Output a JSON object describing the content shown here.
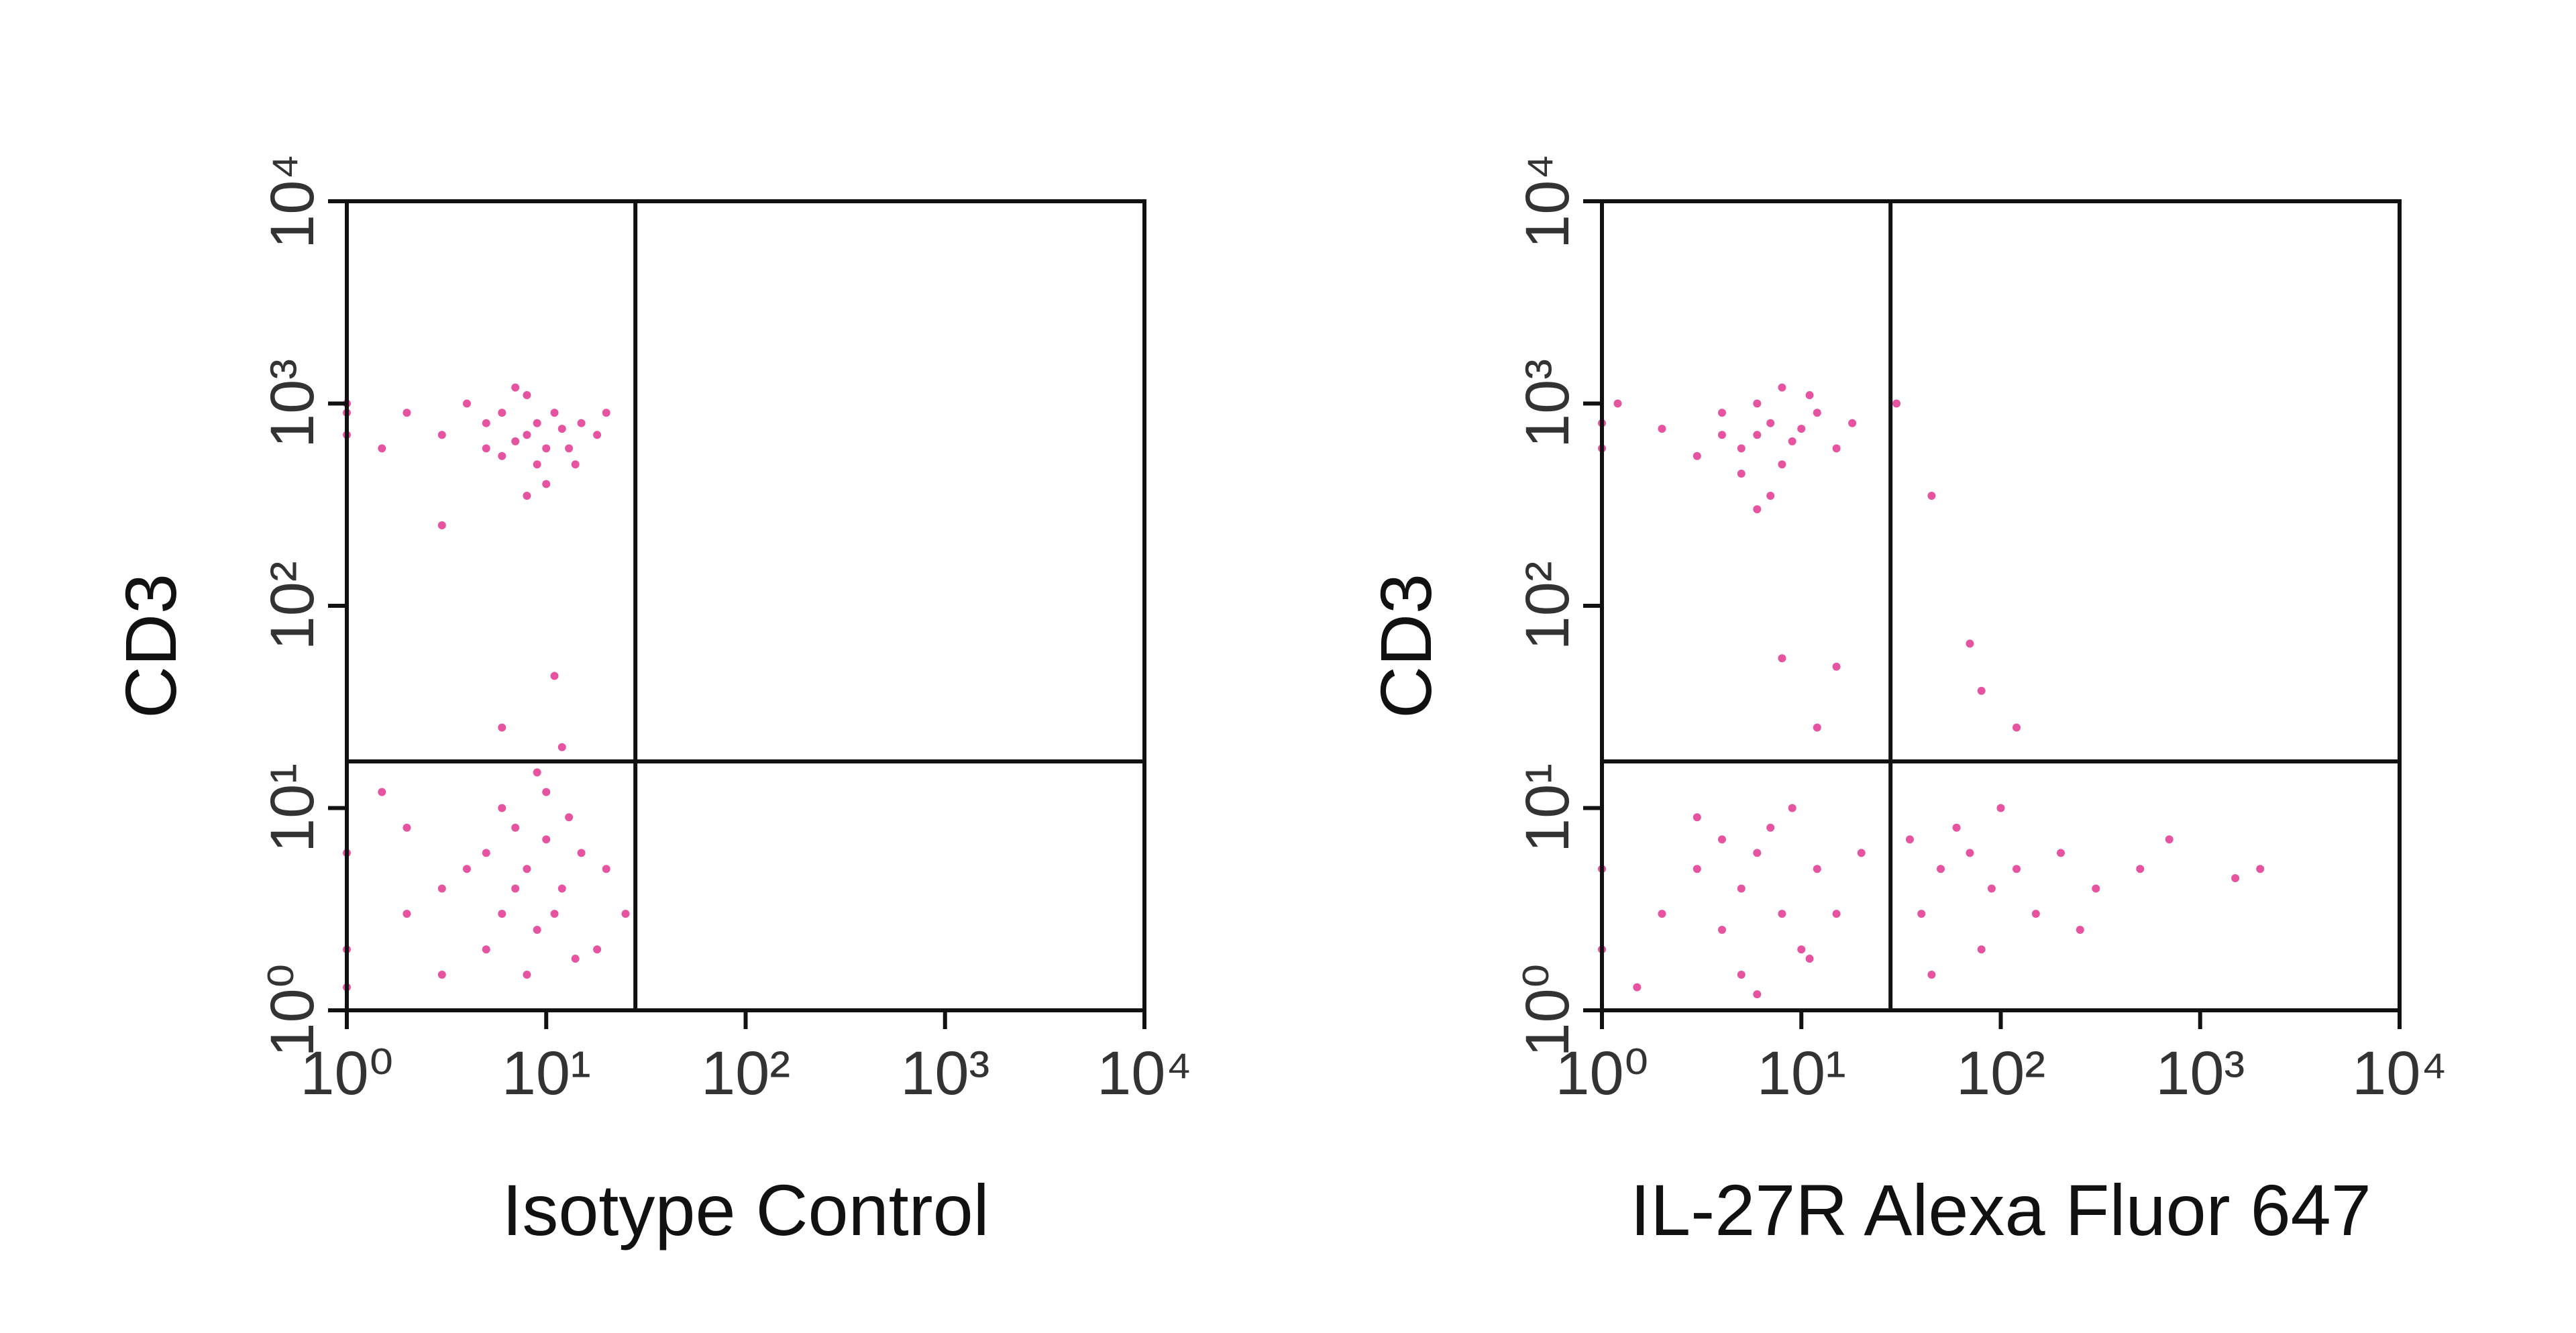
{
  "chart_data": [
    {
      "type": "scatter",
      "xlabel": "Isotype Control",
      "ylabel": "CD3",
      "xscale": "log",
      "yscale": "log",
      "color": "#e0288a",
      "xlim": [
        1,
        10000
      ],
      "ylim": [
        1,
        10000
      ],
      "xticks": [
        {
          "value": 1,
          "label": "10⁰"
        },
        {
          "value": 10,
          "label": "10¹"
        },
        {
          "value": 100,
          "label": "10²"
        },
        {
          "value": 1000,
          "label": "10³"
        },
        {
          "value": 10000,
          "label": "10⁴"
        }
      ],
      "yticks": [
        {
          "value": 1,
          "label": "10⁰"
        },
        {
          "value": 10,
          "label": "10¹"
        },
        {
          "value": 100,
          "label": "10²"
        },
        {
          "value": 1000,
          "label": "10³"
        },
        {
          "value": 10000,
          "label": "10⁴"
        }
      ],
      "gate": {
        "x": 28,
        "y": 17
      },
      "x": [
        5,
        8,
        10,
        6,
        12,
        9,
        7,
        15,
        4,
        11,
        8,
        6,
        13,
        3,
        9,
        18,
        10,
        7,
        5,
        14,
        2,
        1,
        1,
        1,
        1.5,
        20,
        3,
        8,
        8,
        6,
        10,
        12,
        5,
        9,
        7,
        4,
        15,
        11,
        3,
        6,
        13,
        8,
        2,
        1,
        1,
        1,
        2,
        18,
        10,
        5,
        7,
        14,
        20,
        3,
        9,
        12,
        1.5,
        25,
        11,
        6
      ],
      "y": [
        800,
        700,
        600,
        900,
        750,
        500,
        650,
        800,
        1000,
        900,
        1100,
        550,
        600,
        700,
        800,
        700,
        400,
        1200,
        600,
        500,
        900,
        900,
        700,
        1000,
        600,
        900,
        250,
        350,
        5,
        3,
        7,
        4,
        2,
        2.5,
        8,
        5,
        6,
        3,
        4,
        10,
        9,
        1.5,
        3,
        2,
        6,
        1.3,
        8,
        2,
        12,
        6,
        4,
        1.8,
        5,
        1.5,
        15,
        20,
        12,
        3,
        45,
        25
      ]
    },
    {
      "type": "scatter",
      "xlabel": "IL-27R Alexa Fluor 647",
      "ylabel": "CD3",
      "xscale": "log",
      "yscale": "log",
      "color": "#e0288a",
      "xlim": [
        1,
        10000
      ],
      "ylim": [
        1,
        10000
      ],
      "xticks": [
        {
          "value": 1,
          "label": "10⁰"
        },
        {
          "value": 10,
          "label": "10¹"
        },
        {
          "value": 100,
          "label": "10²"
        },
        {
          "value": 1000,
          "label": "10³"
        },
        {
          "value": 10000,
          "label": "10⁴"
        }
      ],
      "yticks": [
        {
          "value": 1,
          "label": "10⁰"
        },
        {
          "value": 10,
          "label": "10¹"
        },
        {
          "value": 100,
          "label": "10²"
        },
        {
          "value": 1000,
          "label": "10³"
        },
        {
          "value": 10000,
          "label": "10⁴"
        }
      ],
      "gate": {
        "x": 28,
        "y": 17
      },
      "x": [
        6,
        5,
        7,
        8,
        4,
        9,
        6,
        5,
        10,
        3,
        12,
        7,
        8,
        4,
        15,
        11,
        1,
        1,
        2,
        1.2,
        18,
        6,
        30,
        45,
        8,
        15,
        12,
        70,
        80,
        120,
        5,
        4,
        6,
        8,
        3,
        10,
        7,
        2,
        5,
        12,
        9,
        4,
        15,
        1,
        1,
        1.5,
        20,
        6,
        3,
        11,
        50,
        70,
        40,
        90,
        60,
        120,
        35,
        150,
        80,
        200,
        300,
        500,
        45,
        100,
        2000,
        1500,
        250,
        700
      ],
      "y": [
        700,
        600,
        800,
        500,
        900,
        650,
        1000,
        450,
        750,
        550,
        900,
        350,
        1200,
        700,
        600,
        1100,
        800,
        600,
        750,
        1000,
        800,
        300,
        1000,
        350,
        55,
        50,
        25,
        65,
        38,
        25,
        4,
        2.5,
        6,
        3,
        5,
        2,
        8,
        3,
        1.5,
        5,
        10,
        7,
        3,
        2,
        5,
        1.3,
        6,
        1.2,
        9,
        1.8,
        5,
        6,
        3,
        4,
        8,
        5,
        7,
        3,
        2,
        6,
        4,
        5,
        1.5,
        10,
        5,
        4.5,
        2.5,
        7
      ]
    }
  ]
}
